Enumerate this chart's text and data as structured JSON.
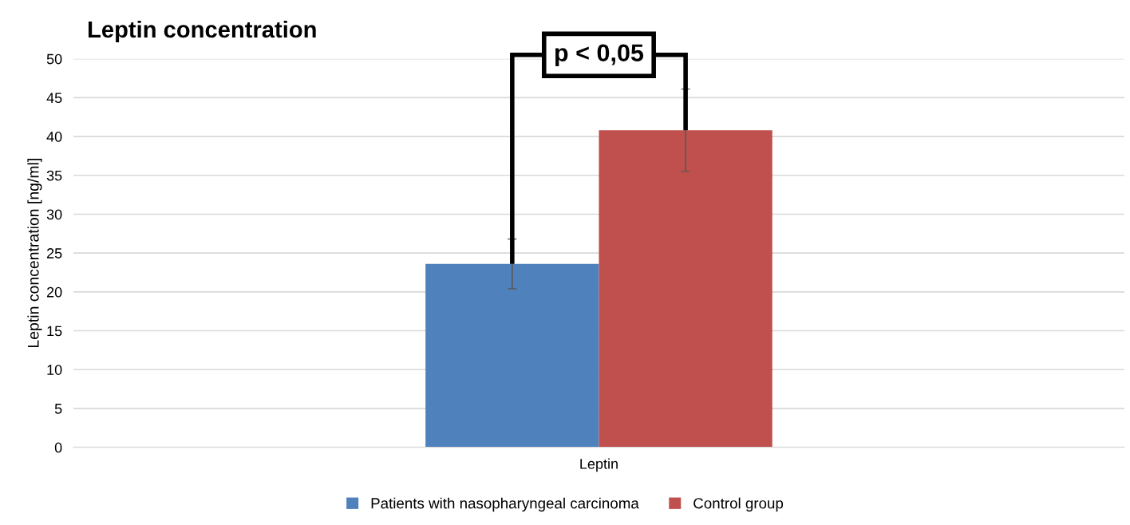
{
  "chart_data": {
    "type": "bar",
    "title": "Leptin concentration",
    "ylabel": "Leptin concentration [ng/ml]",
    "categories": [
      "Leptin"
    ],
    "series": [
      {
        "name": "Patients with nasopharyngeal carcinoma",
        "color": "#4f81bd",
        "values": [
          23.6
        ],
        "errors": [
          3.2
        ]
      },
      {
        "name": "Control group",
        "color": "#c0504d",
        "values": [
          40.8
        ],
        "errors": [
          5.3
        ]
      }
    ],
    "ylim": [
      0,
      50
    ],
    "yticks": [
      0,
      5,
      10,
      15,
      20,
      25,
      30,
      35,
      40,
      45,
      50
    ],
    "grid": "y",
    "legend": "bottom",
    "annotations": [
      "p < 0,05"
    ]
  }
}
